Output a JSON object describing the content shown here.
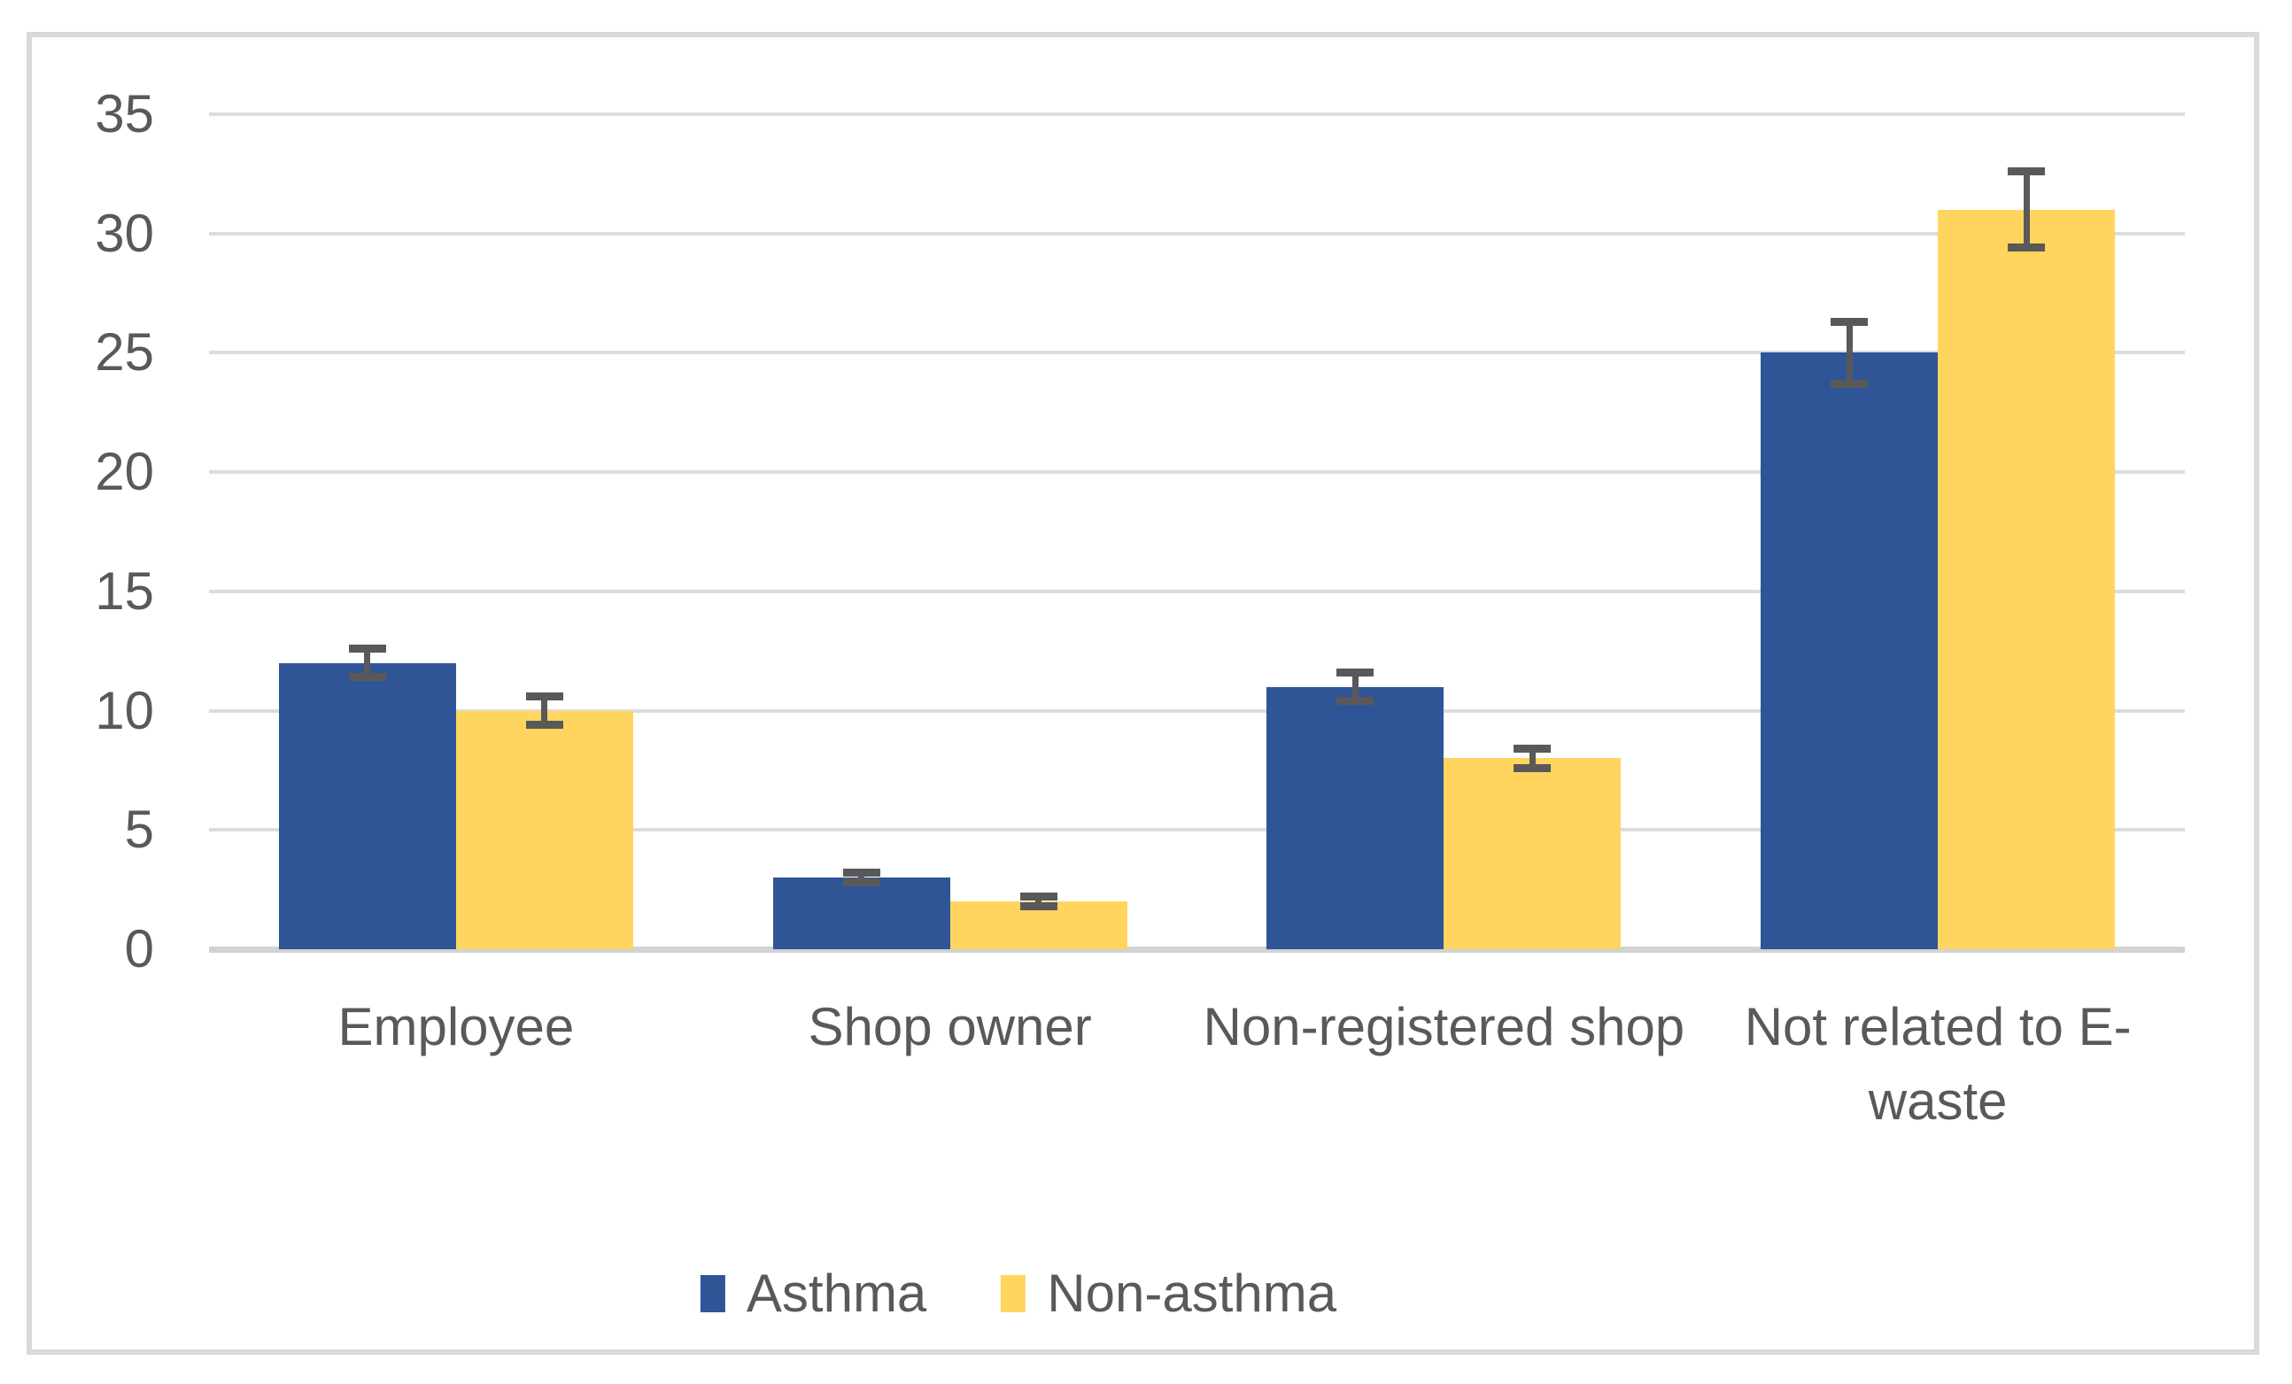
{
  "chart_data": {
    "type": "bar",
    "title": "",
    "xlabel": "",
    "ylabel": "",
    "categories": [
      "Employee",
      "Shop owner",
      "Non-registered shop",
      "Not related to E-waste"
    ],
    "series": [
      {
        "name": "Asthma",
        "color": "#2f5597",
        "values": [
          12,
          3,
          11,
          25
        ],
        "errors": [
          0.6,
          0.2,
          0.6,
          1.3
        ]
      },
      {
        "name": "Non-asthma",
        "color": "#ffd55f",
        "values": [
          10,
          2,
          8,
          31
        ],
        "errors": [
          0.6,
          0.2,
          0.4,
          1.6
        ]
      }
    ],
    "y_ticks": [
      0,
      5,
      10,
      15,
      20,
      25,
      30,
      35
    ],
    "ylim": [
      0,
      35
    ],
    "grid": true,
    "legend_position": "bottom",
    "colors": {
      "gridline": "#dcdcdc",
      "axis_line": "#d2d2d2",
      "error_bar": "#595959",
      "axis_text": "#595959",
      "frame_border": "#d9d9d9",
      "background": "#ffffff"
    }
  }
}
